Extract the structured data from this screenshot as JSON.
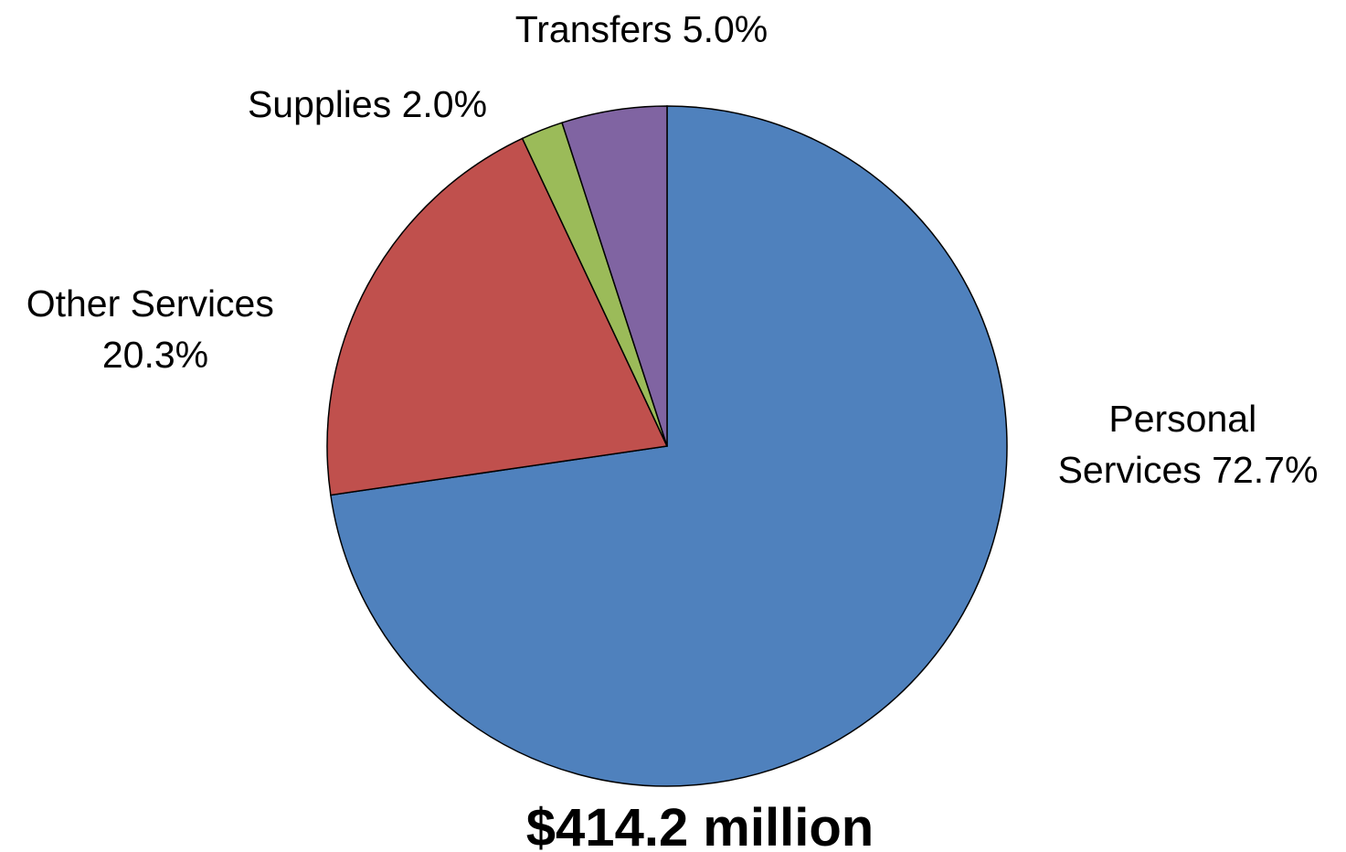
{
  "chart_data": {
    "type": "pie",
    "total_label": "$414.2 million",
    "slices": [
      {
        "category": "Personal Services",
        "value": 72.7,
        "label_lines": [
          "Personal",
          "Services 72.7%"
        ],
        "color": "#4F81BD"
      },
      {
        "category": "Other Services",
        "value": 20.3,
        "label_lines": [
          "Other Services",
          "20.3%"
        ],
        "color": "#C0504D"
      },
      {
        "category": "Supplies",
        "value": 2.0,
        "label_lines": [
          "Supplies 2.0%"
        ],
        "color": "#9BBB59"
      },
      {
        "category": "Transfers",
        "value": 5.0,
        "label_lines": [
          "Transfers 5.0%"
        ],
        "color": "#8064A2"
      }
    ]
  }
}
